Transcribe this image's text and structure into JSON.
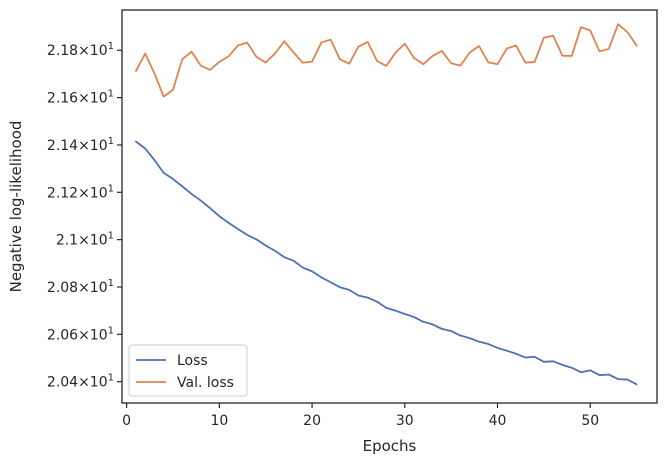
{
  "chart_data": {
    "type": "line",
    "xlabel": "Epochs",
    "ylabel": "Negative log-likelihood",
    "xlim": [
      -0.5,
      57.2
    ],
    "ylim": [
      20.31,
      21.97
    ],
    "x_ticks": [
      0,
      10,
      20,
      30,
      40,
      50
    ],
    "y_ticks": [
      {
        "value": 20.4,
        "mant": "2.04",
        "exp": "1"
      },
      {
        "value": 20.6,
        "mant": "2.06",
        "exp": "1"
      },
      {
        "value": 20.8,
        "mant": "2.08",
        "exp": "1"
      },
      {
        "value": 21.0,
        "mant": "2.1",
        "exp": "1"
      },
      {
        "value": 21.2,
        "mant": "2.12",
        "exp": "1"
      },
      {
        "value": 21.4,
        "mant": "2.14",
        "exp": "1"
      },
      {
        "value": 21.6,
        "mant": "2.16",
        "exp": "1"
      },
      {
        "value": 21.8,
        "mant": "2.18",
        "exp": "1"
      }
    ],
    "times_symbol": "×",
    "tick_base": "10",
    "grid": false,
    "legend_position": "lower left",
    "x": [
      1,
      2,
      3,
      4,
      5,
      6,
      7,
      8,
      9,
      10,
      11,
      12,
      13,
      14,
      15,
      16,
      17,
      18,
      19,
      20,
      21,
      22,
      23,
      24,
      25,
      26,
      27,
      28,
      29,
      30,
      31,
      32,
      33,
      34,
      35,
      36,
      37,
      38,
      39,
      40,
      41,
      42,
      43,
      44,
      45,
      46,
      47,
      48,
      49,
      50,
      51,
      52,
      53,
      54,
      55
    ],
    "series": [
      {
        "name": "Loss",
        "color": "#4c72b0",
        "values": [
          21.414,
          21.385,
          21.336,
          21.282,
          21.256,
          21.225,
          21.193,
          21.165,
          21.133,
          21.099,
          21.071,
          21.045,
          21.02,
          21.001,
          20.975,
          20.953,
          20.926,
          20.911,
          20.882,
          20.866,
          20.841,
          20.82,
          20.799,
          20.788,
          20.764,
          20.755,
          20.738,
          20.712,
          20.7,
          20.686,
          20.673,
          20.653,
          20.642,
          20.623,
          20.614,
          20.595,
          20.584,
          20.569,
          20.559,
          20.543,
          20.531,
          20.518,
          20.502,
          20.505,
          20.484,
          20.486,
          20.471,
          20.459,
          20.44,
          20.448,
          20.428,
          20.43,
          20.411,
          20.409,
          20.389
        ]
      },
      {
        "name": "Val. loss",
        "color": "#dd8452",
        "values": [
          21.712,
          21.786,
          21.702,
          21.604,
          21.633,
          21.762,
          21.794,
          21.735,
          21.717,
          21.751,
          21.774,
          21.82,
          21.832,
          21.772,
          21.748,
          21.786,
          21.838,
          21.791,
          21.747,
          21.752,
          21.833,
          21.845,
          21.762,
          21.743,
          21.815,
          21.835,
          21.755,
          21.734,
          21.79,
          21.828,
          21.767,
          21.741,
          21.776,
          21.797,
          21.745,
          21.735,
          21.79,
          21.818,
          21.749,
          21.741,
          21.807,
          21.82,
          21.748,
          21.75,
          21.853,
          21.862,
          21.777,
          21.776,
          21.897,
          21.884,
          21.795,
          21.806,
          21.91,
          21.877,
          21.82
        ]
      }
    ]
  }
}
